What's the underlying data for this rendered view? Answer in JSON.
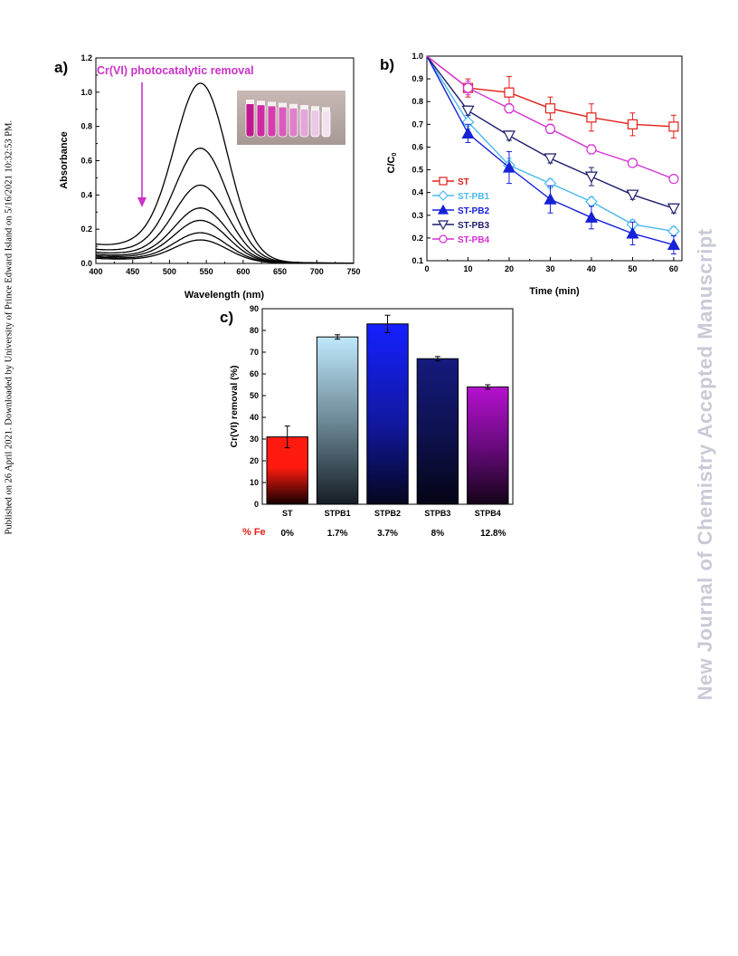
{
  "side_text_left": "Published on 26 April 2021. Downloaded by University of Prince Edward Island on 5/16/2021 10:32:53 PM.",
  "side_text_right": "New Journal of Chemistry Accepted Manuscript",
  "colors": {
    "ST": "#e0201b",
    "ST-PB1": "#49b9ef",
    "ST-PB2": "#1621d8",
    "ST-PB3": "#1d1d6e",
    "ST-PB4": "#d42fd4",
    "annotation": "#c932c9",
    "fe_label": "#e0201b"
  },
  "chart_data": [
    {
      "panel_label": "a)",
      "type": "line",
      "annotation": "Cr(VI) photocatalytic removal",
      "xlabel": "Wavelength (nm)",
      "ylabel": "Absorbance",
      "xlim": [
        400,
        750
      ],
      "ylim": [
        0,
        1.2
      ],
      "xticks": [
        "400",
        "450",
        "500",
        "550",
        "600",
        "650",
        "700",
        "750"
      ],
      "yticks": [
        "0.0",
        "0.2",
        "0.4",
        "0.6",
        "0.8",
        "1.0",
        "1.2"
      ],
      "peak_wavelength": 543,
      "series_peaks": [
        1.02,
        0.65,
        0.44,
        0.31,
        0.24,
        0.17,
        0.13
      ],
      "series_baseline_at_400": [
        0.1,
        0.075,
        0.06,
        0.05,
        0.042,
        0.035,
        0.028
      ],
      "inset": "photo of vials"
    },
    {
      "panel_label": "b)",
      "type": "line",
      "xlabel": "Time (min)",
      "ylabel": "C/C",
      "ylabel_sub": "0",
      "xlim": [
        0,
        62
      ],
      "ylim": [
        0.1,
        1.0
      ],
      "xticks": [
        "0",
        "10",
        "20",
        "30",
        "40",
        "50",
        "60"
      ],
      "yticks": [
        "0.1",
        "0.2",
        "0.3",
        "0.4",
        "0.5",
        "0.6",
        "0.7",
        "0.8",
        "0.9",
        "1.0"
      ],
      "x": [
        0,
        10,
        20,
        30,
        40,
        50,
        60
      ],
      "series": [
        {
          "name": "ST",
          "marker": "square-open",
          "values": [
            1.0,
            0.86,
            0.84,
            0.77,
            0.73,
            0.7,
            0.69
          ],
          "errors": [
            0,
            0.04,
            0.07,
            0.05,
            0.06,
            0.05,
            0.05
          ]
        },
        {
          "name": "ST-PB1",
          "marker": "diamond-open",
          "values": [
            1.0,
            0.71,
            0.52,
            0.44,
            0.36,
            0.26,
            0.23
          ],
          "errors": [
            0,
            0.03,
            0.03,
            0.02,
            0.02,
            0.02,
            0.02
          ]
        },
        {
          "name": "ST-PB2",
          "marker": "triangle-up-filled",
          "values": [
            1.0,
            0.66,
            0.51,
            0.37,
            0.29,
            0.22,
            0.17
          ],
          "errors": [
            0,
            0.04,
            0.07,
            0.06,
            0.05,
            0.05,
            0.04
          ]
        },
        {
          "name": "ST-PB3",
          "marker": "triangle-down-open",
          "values": [
            1.0,
            0.76,
            0.65,
            0.55,
            0.47,
            0.39,
            0.33
          ],
          "errors": [
            0,
            0.02,
            0.02,
            0.02,
            0.04,
            0.02,
            0.02
          ]
        },
        {
          "name": "ST-PB4",
          "marker": "circle-open",
          "values": [
            1.0,
            0.86,
            0.77,
            0.68,
            0.59,
            0.53,
            0.46
          ],
          "errors": [
            0,
            0.03,
            0.02,
            0.02,
            0.02,
            0.01,
            0.01
          ]
        }
      ],
      "legend_position": "middle-left"
    },
    {
      "panel_label": "c)",
      "type": "bar",
      "ylabel": "Cr(VI) removal (%)",
      "ylim": [
        0,
        90
      ],
      "yticks": [
        "0",
        "10",
        "20",
        "30",
        "40",
        "50",
        "60",
        "70",
        "80",
        "90"
      ],
      "categories": [
        "ST",
        "STPB1",
        "STPB2",
        "STPB3",
        "STPB4"
      ],
      "values": [
        31,
        77,
        83,
        67,
        54
      ],
      "errors": [
        5,
        1,
        4,
        1,
        1
      ],
      "bar_colors": [
        "#ff1a10",
        "#bfe8fb",
        "#1520ff",
        "#151a7e",
        "#b511cf"
      ],
      "fe_label": "% Fe",
      "fe_values": [
        "0%",
        "1.7%",
        "3.7%",
        "8%",
        "12.8%"
      ]
    }
  ]
}
